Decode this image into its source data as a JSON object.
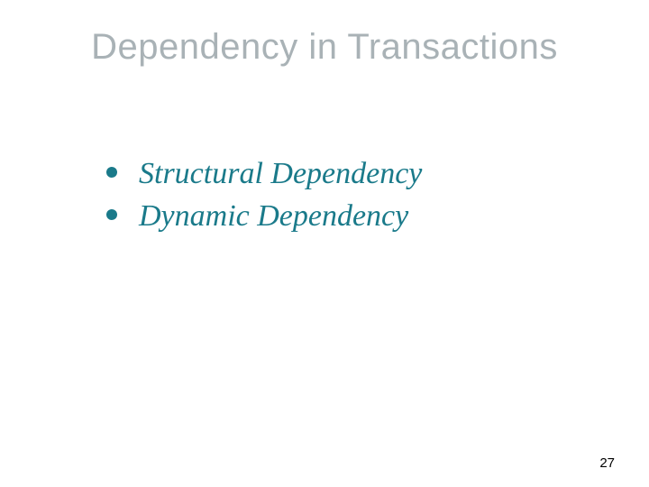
{
  "slide": {
    "title": "Dependency in Transactions",
    "title_color": "#a9b2b6",
    "title_fontsize": 40,
    "bullets": [
      {
        "text": "Structural Dependency"
      },
      {
        "text": "Dynamic Dependency"
      }
    ],
    "bullet_color": "#1a7a8a",
    "bullet_marker_color": "#1a7a8a",
    "bullet_fontsize": 34,
    "page_number": "27",
    "page_number_fontsize": 15,
    "background_color": "#ffffff"
  }
}
